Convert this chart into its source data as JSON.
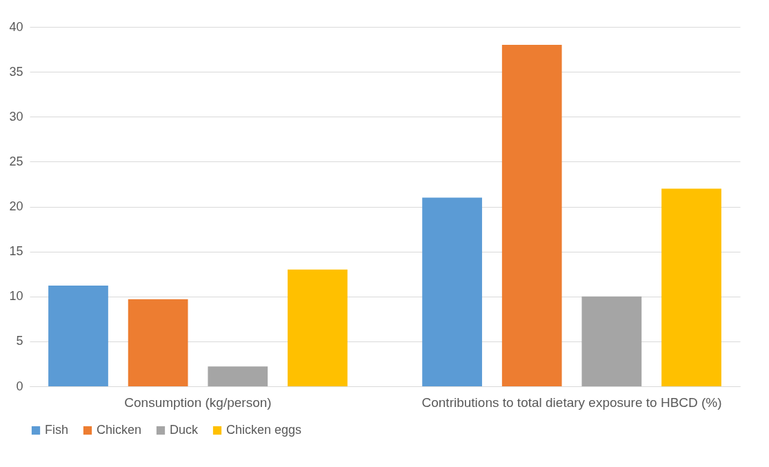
{
  "chart_data": {
    "type": "bar",
    "categories": [
      "Consumption (kg/person)",
      "Contributions to total dietary exposure to HBCD (%)"
    ],
    "series": [
      {
        "name": "Fish",
        "color": "#5b9bd5",
        "values": [
          11.2,
          21
        ]
      },
      {
        "name": "Chicken",
        "color": "#ed7d31",
        "values": [
          9.7,
          38
        ]
      },
      {
        "name": "Duck",
        "color": "#a5a5a5",
        "values": [
          2.2,
          10
        ]
      },
      {
        "name": "Chicken eggs",
        "color": "#ffc000",
        "values": [
          13,
          22
        ]
      }
    ],
    "ylim": [
      0,
      40
    ],
    "yticks": [
      0,
      5,
      10,
      15,
      20,
      25,
      30,
      35,
      40
    ],
    "grid": "y",
    "legend": "bottom"
  }
}
